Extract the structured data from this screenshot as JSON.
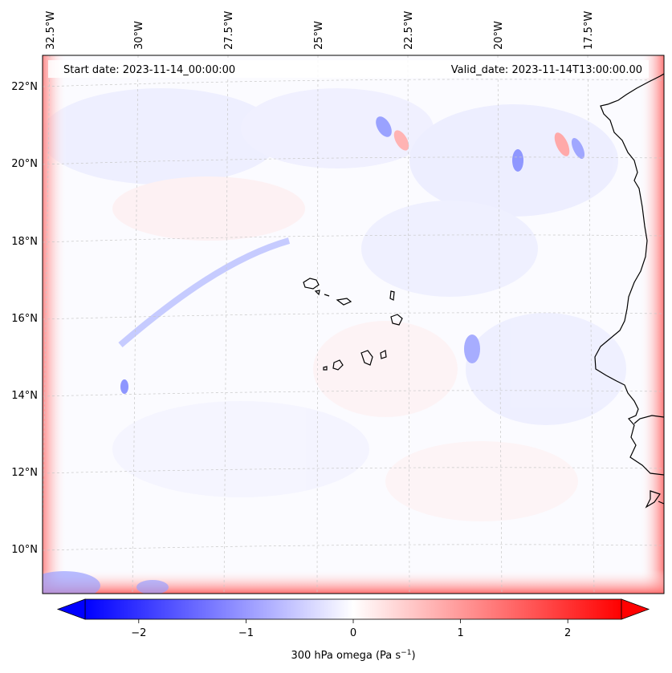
{
  "header": {
    "start_date": "Start date: 2023-11-14_00:00:00",
    "valid_date": "Valid_date: 2023-11-14T13:00:00.00"
  },
  "axes": {
    "top_labels": [
      "32.5°W",
      "30°W",
      "27.5°W",
      "25°W",
      "22.5°W",
      "20°W",
      "17.5°W"
    ],
    "left_labels": [
      "22°N",
      "20°N",
      "18°N",
      "16°N",
      "14°N",
      "12°N",
      "10°N"
    ]
  },
  "colorbar": {
    "label_main": "300 hPa omega (Pa s",
    "label_exp": "−1",
    "label_close": ")",
    "ticks": [
      "−2",
      "−1",
      "0",
      "1",
      "2"
    ],
    "tick_values": [
      -2,
      -1,
      0,
      1,
      2
    ],
    "range": [
      -2.5,
      2.5
    ],
    "colors": {
      "negative": "#0000ff",
      "zero": "#ffffff",
      "positive": "#ff0000"
    }
  },
  "map": {
    "lon_range": [
      -33.0,
      -15.2
    ],
    "lat_range": [
      8.8,
      22.8
    ],
    "projection": "lambert-like",
    "coastline_color": "#000000",
    "field_name": "300 hPa omega"
  }
}
